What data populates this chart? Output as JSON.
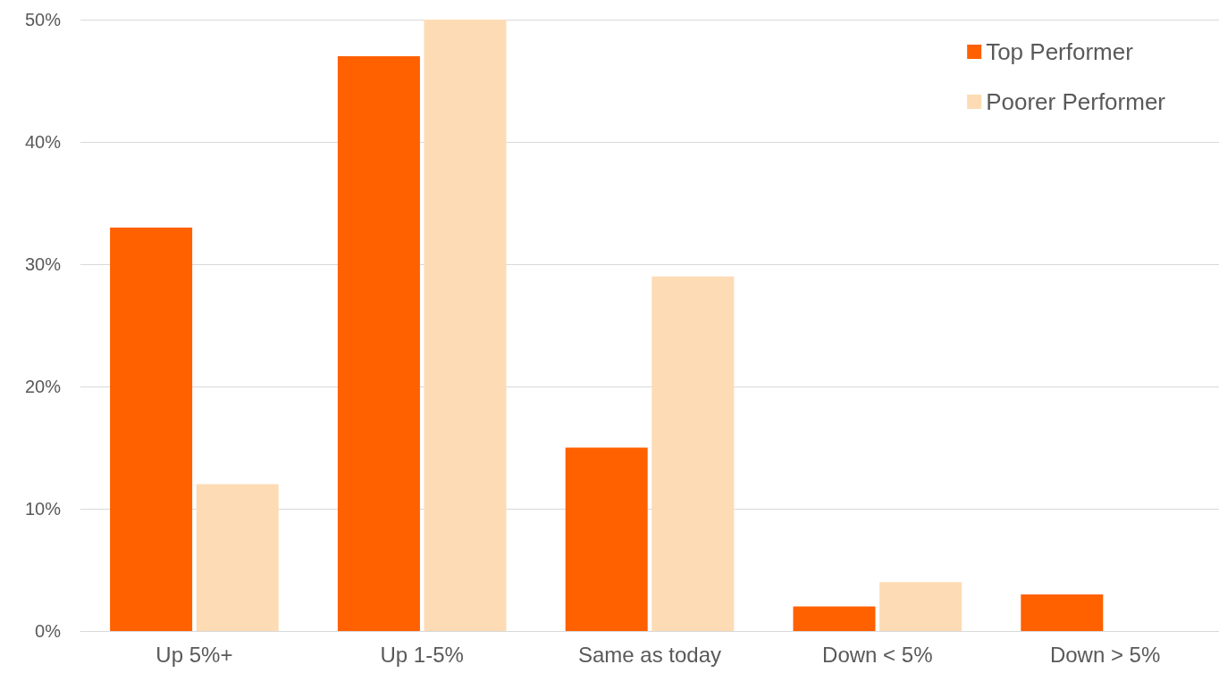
{
  "chart_data": {
    "type": "bar",
    "categories": [
      "Up 5%+",
      "Up 1-5%",
      "Same as today",
      "Down < 5%",
      "Down > 5%"
    ],
    "series": [
      {
        "name": "Top Performer",
        "color": "#ff6000",
        "values": [
          33,
          47,
          15,
          2,
          3
        ]
      },
      {
        "name": "Poorer Performer",
        "color": "#fddbb4",
        "values": [
          12,
          50,
          29,
          4,
          0
        ]
      }
    ],
    "ylim": [
      0,
      50
    ],
    "yticks": [
      {
        "value": 0,
        "label": "0%"
      },
      {
        "value": 10,
        "label": "10%"
      },
      {
        "value": 20,
        "label": "20%"
      },
      {
        "value": 30,
        "label": "30%"
      },
      {
        "value": 40,
        "label": "40%"
      },
      {
        "value": 50,
        "label": "50%"
      }
    ],
    "grid": "y",
    "legend": "top right"
  }
}
